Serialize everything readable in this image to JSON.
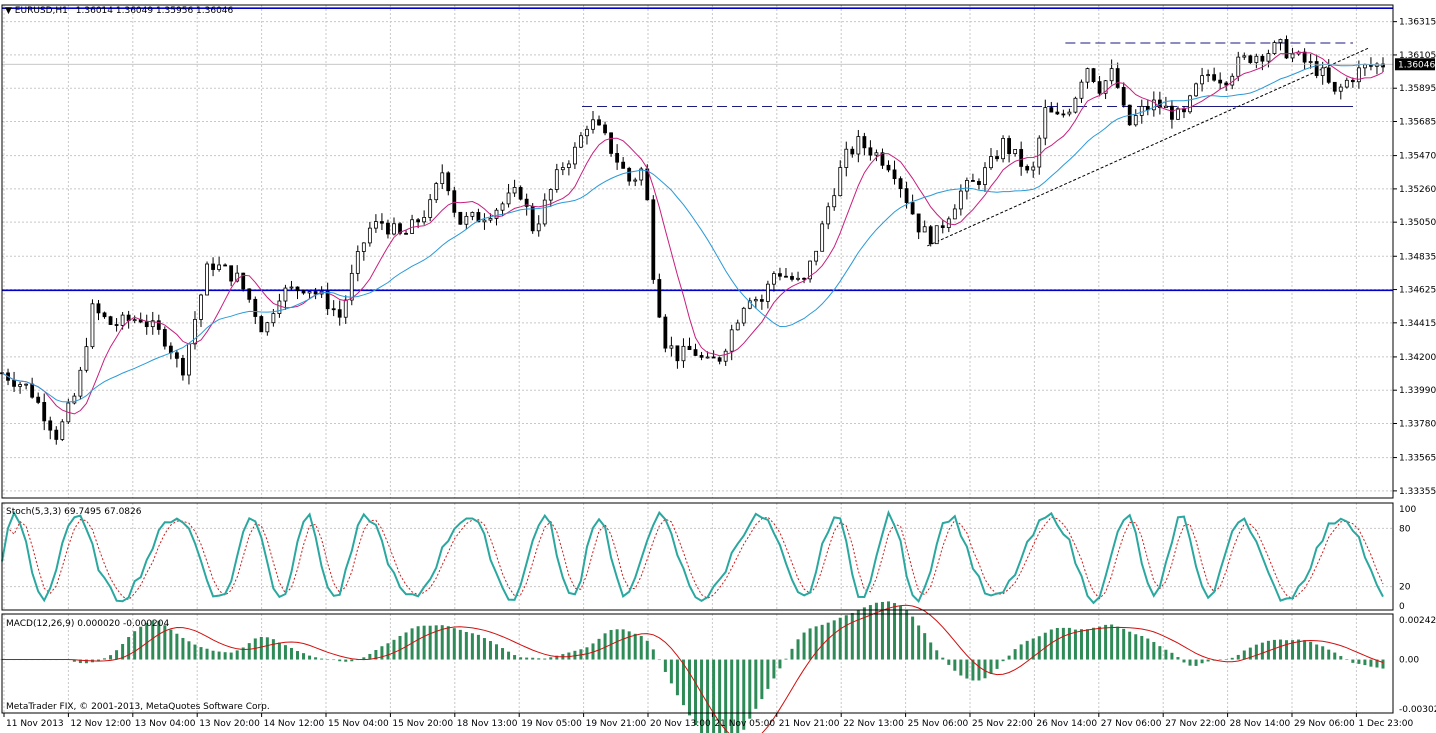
{
  "header": {
    "symbol": "EURUSD,H1",
    "ohlc": "1.36014 1.36049 1.35956 1.36046",
    "current_price": "1.36046"
  },
  "colors": {
    "background": "#ffffff",
    "grid": "#c8c8c8",
    "candle": "#000000",
    "ma_fast": "#c81e7e",
    "ma_slow": "#2a9ad8",
    "level_lines": "#0000c8",
    "stoch_main": "#2aa8a0",
    "stoch_signal": "#c81e1e",
    "macd_hist": "#2e8b57",
    "macd_signal": "#d01010"
  },
  "indicators": {
    "stoch_label": "Stoch(5,3,3) 69.7495 67.0826",
    "macd_label": "MACD(12,26,9) 0.000020 -0.000204",
    "copyright": "MetaTrader FIX, © 2001-2013, MetaQuotes Software Corp."
  },
  "chart_data": {
    "type": "candlestick",
    "price_axis": {
      "ticks": [
        "1.36315",
        "1.36105",
        "1.35895",
        "1.35685",
        "1.35470",
        "1.35260",
        "1.35050",
        "1.34835",
        "1.34625",
        "1.34415",
        "1.34200",
        "1.33990",
        "1.33780",
        "1.33565",
        "1.33355"
      ],
      "range": [
        1.3331,
        1.3642
      ]
    },
    "stoch_axis": {
      "ticks": [
        "100",
        "80",
        "20",
        "0"
      ],
      "range": [
        0,
        100
      ]
    },
    "macd_axis": {
      "ticks": [
        "0.002421",
        "0.00",
        "-0.003028"
      ],
      "range": [
        -0.003028,
        0.002421
      ]
    },
    "time_axis": [
      "11 Nov 2013",
      "12 Nov 12:00",
      "13 Nov 04:00",
      "13 Nov 20:00",
      "14 Nov 12:00",
      "15 Nov 04:00",
      "15 Nov 20:00",
      "18 Nov 13:00",
      "19 Nov 05:00",
      "19 Nov 21:00",
      "20 Nov 13:00",
      "21 Nov 05:00",
      "21 Nov 21:00",
      "22 Nov 13:00",
      "25 Nov 06:00",
      "25 Nov 22:00",
      "26 Nov 14:00",
      "27 Nov 06:00",
      "27 Nov 22:00",
      "28 Nov 14:00",
      "29 Nov 06:00",
      "1 Dec 23:00"
    ],
    "horizontal_levels": [
      1.364,
      1.3462
    ],
    "dashed_levels": [
      {
        "price": 1.3578,
        "from": 0.42,
        "to": 1.0
      },
      {
        "price": 1.3618,
        "from": 0.77,
        "to": 1.0
      },
      {
        "price": 1.3578,
        "from": 0.86,
        "to": 1.0
      }
    ],
    "trendline": {
      "from_price": 1.349,
      "to_price": 1.3615
    },
    "price_path": [
      [
        0,
        1.341
      ],
      [
        0.02,
        1.34
      ],
      [
        0.04,
        1.337
      ],
      [
        0.055,
        1.34
      ],
      [
        0.065,
        1.345
      ],
      [
        0.08,
        1.344
      ],
      [
        0.1,
        1.3445
      ],
      [
        0.12,
        1.343
      ],
      [
        0.13,
        1.341
      ],
      [
        0.14,
        1.3445
      ],
      [
        0.15,
        1.348
      ],
      [
        0.16,
        1.3475
      ],
      [
        0.17,
        1.347
      ],
      [
        0.18,
        1.3455
      ],
      [
        0.19,
        1.3435
      ],
      [
        0.2,
        1.346
      ],
      [
        0.21,
        1.3462
      ],
      [
        0.22,
        1.3465
      ],
      [
        0.235,
        1.3455
      ],
      [
        0.245,
        1.3445
      ],
      [
        0.255,
        1.3475
      ],
      [
        0.265,
        1.35
      ],
      [
        0.275,
        1.3505
      ],
      [
        0.29,
        1.3495
      ],
      [
        0.31,
        1.3515
      ],
      [
        0.32,
        1.354
      ],
      [
        0.33,
        1.3505
      ],
      [
        0.345,
        1.3508
      ],
      [
        0.36,
        1.3515
      ],
      [
        0.375,
        1.3525
      ],
      [
        0.385,
        1.35
      ],
      [
        0.395,
        1.352
      ],
      [
        0.405,
        1.354
      ],
      [
        0.415,
        1.355
      ],
      [
        0.425,
        1.357
      ],
      [
        0.435,
        1.356
      ],
      [
        0.445,
        1.3545
      ],
      [
        0.455,
        1.353
      ],
      [
        0.465,
        1.354
      ],
      [
        0.472,
        1.347
      ],
      [
        0.48,
        1.343
      ],
      [
        0.49,
        1.342
      ],
      [
        0.5,
        1.3425
      ],
      [
        0.51,
        1.3415
      ],
      [
        0.52,
        1.342
      ],
      [
        0.53,
        1.344
      ],
      [
        0.54,
        1.346
      ],
      [
        0.55,
        1.3455
      ],
      [
        0.56,
        1.3475
      ],
      [
        0.57,
        1.347
      ],
      [
        0.58,
        1.3465
      ],
      [
        0.59,
        1.349
      ],
      [
        0.6,
        1.352
      ],
      [
        0.61,
        1.3545
      ],
      [
        0.62,
        1.3555
      ],
      [
        0.63,
        1.355
      ],
      [
        0.645,
        1.354
      ],
      [
        0.655,
        1.352
      ],
      [
        0.665,
        1.35
      ],
      [
        0.675,
        1.3495
      ],
      [
        0.685,
        1.351
      ],
      [
        0.695,
        1.3525
      ],
      [
        0.705,
        1.353
      ],
      [
        0.715,
        1.354
      ],
      [
        0.725,
        1.3555
      ],
      [
        0.74,
        1.354
      ],
      [
        0.745,
        1.353
      ],
      [
        0.755,
        1.3575
      ],
      [
        0.765,
        1.357
      ],
      [
        0.775,
        1.358
      ],
      [
        0.785,
        1.3605
      ],
      [
        0.795,
        1.359
      ],
      [
        0.805,
        1.36
      ],
      [
        0.815,
        1.3565
      ],
      [
        0.825,
        1.3575
      ],
      [
        0.835,
        1.358
      ],
      [
        0.845,
        1.3575
      ],
      [
        0.855,
        1.357
      ],
      [
        0.865,
        1.359
      ],
      [
        0.875,
        1.36
      ],
      [
        0.885,
        1.3595
      ],
      [
        0.895,
        1.3605
      ],
      [
        0.905,
        1.361
      ],
      [
        0.915,
        1.3612
      ],
      [
        0.925,
        1.3616
      ],
      [
        0.935,
        1.361
      ],
      [
        0.945,
        1.3605
      ],
      [
        0.955,
        1.36
      ],
      [
        0.965,
        1.3585
      ],
      [
        0.975,
        1.3595
      ],
      [
        0.985,
        1.3602
      ],
      [
        1.0,
        1.3605
      ]
    ]
  }
}
